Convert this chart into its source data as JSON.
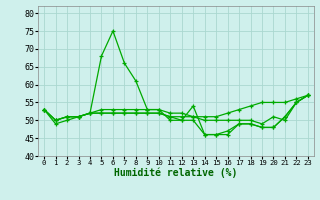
{
  "title": "",
  "xlabel": "Humidité relative (%)",
  "ylabel": "",
  "background_color": "#cff0ec",
  "grid_color": "#aad8d0",
  "line_color": "#00aa00",
  "marker": "+",
  "xlim": [
    -0.5,
    23.5
  ],
  "ylim": [
    40,
    82
  ],
  "yticks": [
    40,
    45,
    50,
    55,
    60,
    65,
    70,
    75,
    80
  ],
  "series": [
    [
      53,
      49,
      50,
      51,
      52,
      68,
      75,
      66,
      61,
      53,
      53,
      50,
      50,
      54,
      46,
      46,
      46,
      49,
      49,
      48,
      48,
      51,
      55,
      57
    ],
    [
      53,
      50,
      51,
      51,
      52,
      53,
      53,
      53,
      53,
      53,
      53,
      52,
      52,
      51,
      50,
      50,
      50,
      50,
      50,
      49,
      51,
      50,
      55,
      57
    ],
    [
      53,
      50,
      51,
      51,
      52,
      52,
      52,
      52,
      52,
      52,
      52,
      51,
      51,
      51,
      51,
      51,
      52,
      53,
      54,
      55,
      55,
      55,
      56,
      57
    ],
    [
      53,
      50,
      51,
      51,
      52,
      52,
      52,
      52,
      52,
      52,
      52,
      51,
      50,
      50,
      46,
      46,
      47,
      49,
      49,
      48,
      48,
      51,
      55,
      57
    ]
  ]
}
